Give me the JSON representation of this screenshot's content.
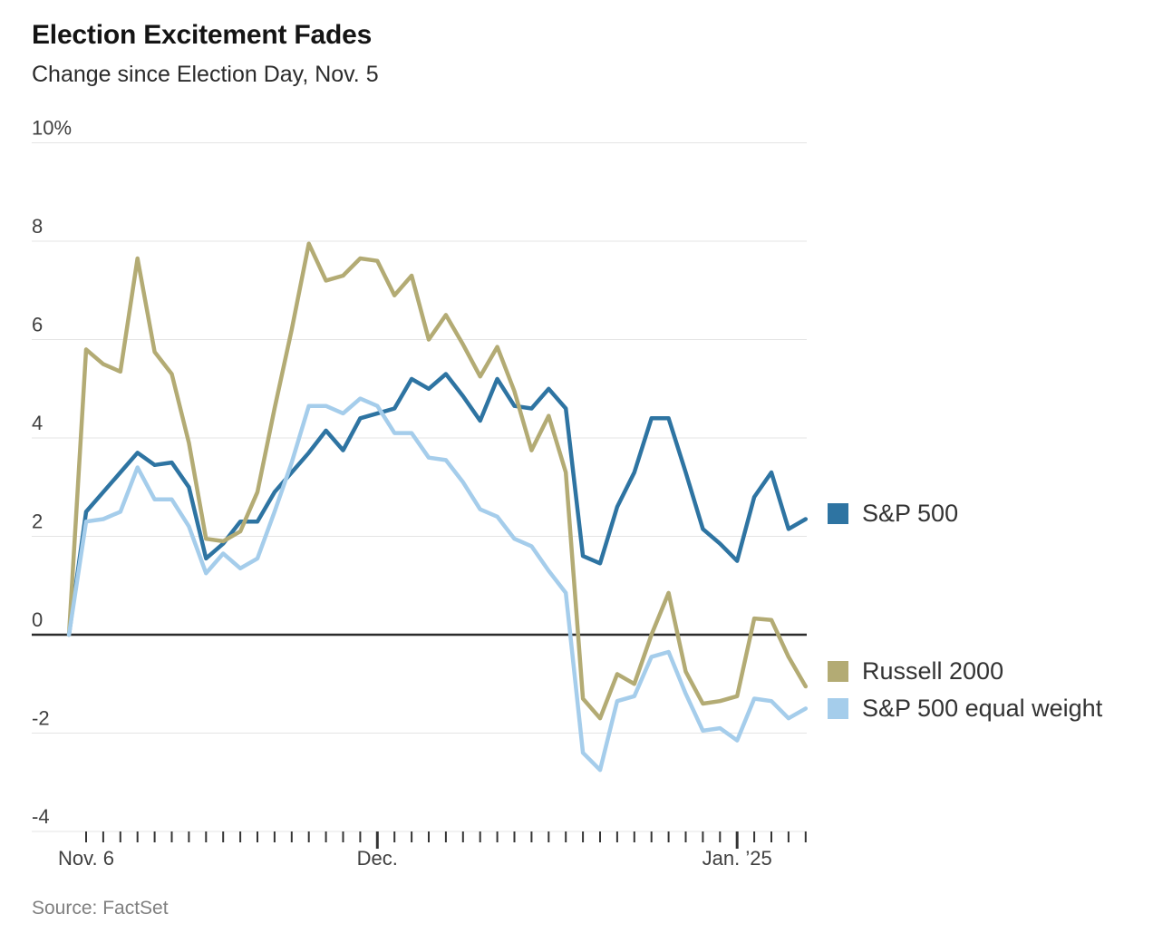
{
  "header": {
    "title": "Election Excitement Fades",
    "subtitle": "Change since Election Day, Nov. 5"
  },
  "source": "Source: FactSet",
  "legend": {
    "items": [
      {
        "label": "S&P 500",
        "color": "#2e74a2"
      },
      {
        "label": "Russell 2000",
        "color": "#b3ab74"
      },
      {
        "label": "S&P 500 equal weight",
        "color": "#a5cdeb"
      }
    ]
  },
  "chart_data": {
    "type": "line",
    "title": "Election Excitement Fades",
    "subtitle": "Change since Election Day, Nov. 5",
    "unit": "percent change since Nov. 5",
    "x_dates": [
      "Nov. 5",
      "Nov. 6",
      "Nov. 7",
      "Nov. 8",
      "Nov. 11",
      "Nov. 12",
      "Nov. 13",
      "Nov. 14",
      "Nov. 15",
      "Nov. 18",
      "Nov. 19",
      "Nov. 20",
      "Nov. 21",
      "Nov. 22",
      "Nov. 25",
      "Nov. 26",
      "Nov. 27",
      "Nov. 29",
      "Dec. 2",
      "Dec. 3",
      "Dec. 4",
      "Dec. 5",
      "Dec. 6",
      "Dec. 9",
      "Dec. 10",
      "Dec. 11",
      "Dec. 12",
      "Dec. 13",
      "Dec. 16",
      "Dec. 17",
      "Dec. 18",
      "Dec. 19",
      "Dec. 20",
      "Dec. 23",
      "Dec. 24",
      "Dec. 26",
      "Dec. 27",
      "Dec. 30",
      "Dec. 31",
      "Jan. 2",
      "Jan. 3",
      "Jan. 6",
      "Jan. 7",
      "Jan. 8"
    ],
    "series": [
      {
        "name": "S&P 500",
        "color": "#2e74a2",
        "values": [
          0,
          2.5,
          2.9,
          3.3,
          3.7,
          3.45,
          3.5,
          3.0,
          1.55,
          1.85,
          2.3,
          2.3,
          2.9,
          3.3,
          3.7,
          4.15,
          3.75,
          4.4,
          4.5,
          4.6,
          5.2,
          5.0,
          5.3,
          4.85,
          4.35,
          5.2,
          4.65,
          4.6,
          5.0,
          4.6,
          1.6,
          1.45,
          2.6,
          3.3,
          4.4,
          4.4,
          3.3,
          2.15,
          1.85,
          1.5,
          2.8,
          3.3,
          2.15,
          2.35
        ]
      },
      {
        "name": "Russell 2000",
        "color": "#b3ab74",
        "values": [
          0,
          5.8,
          5.5,
          5.35,
          7.65,
          5.75,
          5.3,
          3.9,
          1.95,
          1.9,
          2.1,
          2.9,
          4.6,
          6.2,
          7.95,
          7.2,
          7.3,
          7.65,
          7.6,
          6.9,
          7.3,
          6.0,
          6.5,
          5.9,
          5.25,
          5.85,
          4.95,
          3.75,
          4.45,
          3.3,
          -1.3,
          -1.7,
          -0.8,
          -1.0,
          0.0,
          0.85,
          -0.75,
          -1.4,
          -1.35,
          -1.25,
          0.33,
          0.3,
          -0.45,
          -1.05
        ]
      },
      {
        "name": "S&P 500 equal weight",
        "color": "#a5cdeb",
        "values": [
          0,
          2.3,
          2.35,
          2.5,
          3.4,
          2.75,
          2.75,
          2.2,
          1.25,
          1.65,
          1.35,
          1.55,
          2.5,
          3.5,
          4.65,
          4.65,
          4.5,
          4.8,
          4.65,
          4.1,
          4.1,
          3.6,
          3.55,
          3.1,
          2.55,
          2.4,
          1.95,
          1.8,
          1.3,
          0.85,
          -2.4,
          -2.75,
          -1.35,
          -1.25,
          -0.45,
          -0.35,
          -1.2,
          -1.95,
          -1.9,
          -2.15,
          -1.3,
          -1.35,
          -1.7,
          -1.5
        ]
      }
    ],
    "y_axis": {
      "min": -4,
      "max": 10,
      "gridlines": [
        {
          "value": 10,
          "label": "10%"
        },
        {
          "value": 8,
          "label": "8"
        },
        {
          "value": 6,
          "label": "6"
        },
        {
          "value": 4,
          "label": "4"
        },
        {
          "value": 2,
          "label": "2"
        },
        {
          "value": 0,
          "label": "0"
        },
        {
          "value": -2,
          "label": "-2"
        },
        {
          "value": -4,
          "label": "-4"
        }
      ]
    },
    "x_axis": {
      "labels": [
        {
          "text": "Nov. 6",
          "anchor_date": "Nov. 6"
        },
        {
          "text": "Dec.",
          "anchor_date": "Dec. 2"
        },
        {
          "text": "Jan. ’25",
          "anchor_date": "Jan. 2"
        }
      ],
      "major_tick_dates": [
        "Dec. 2",
        "Jan. 2"
      ]
    },
    "legend_position": "right",
    "grid": true
  }
}
